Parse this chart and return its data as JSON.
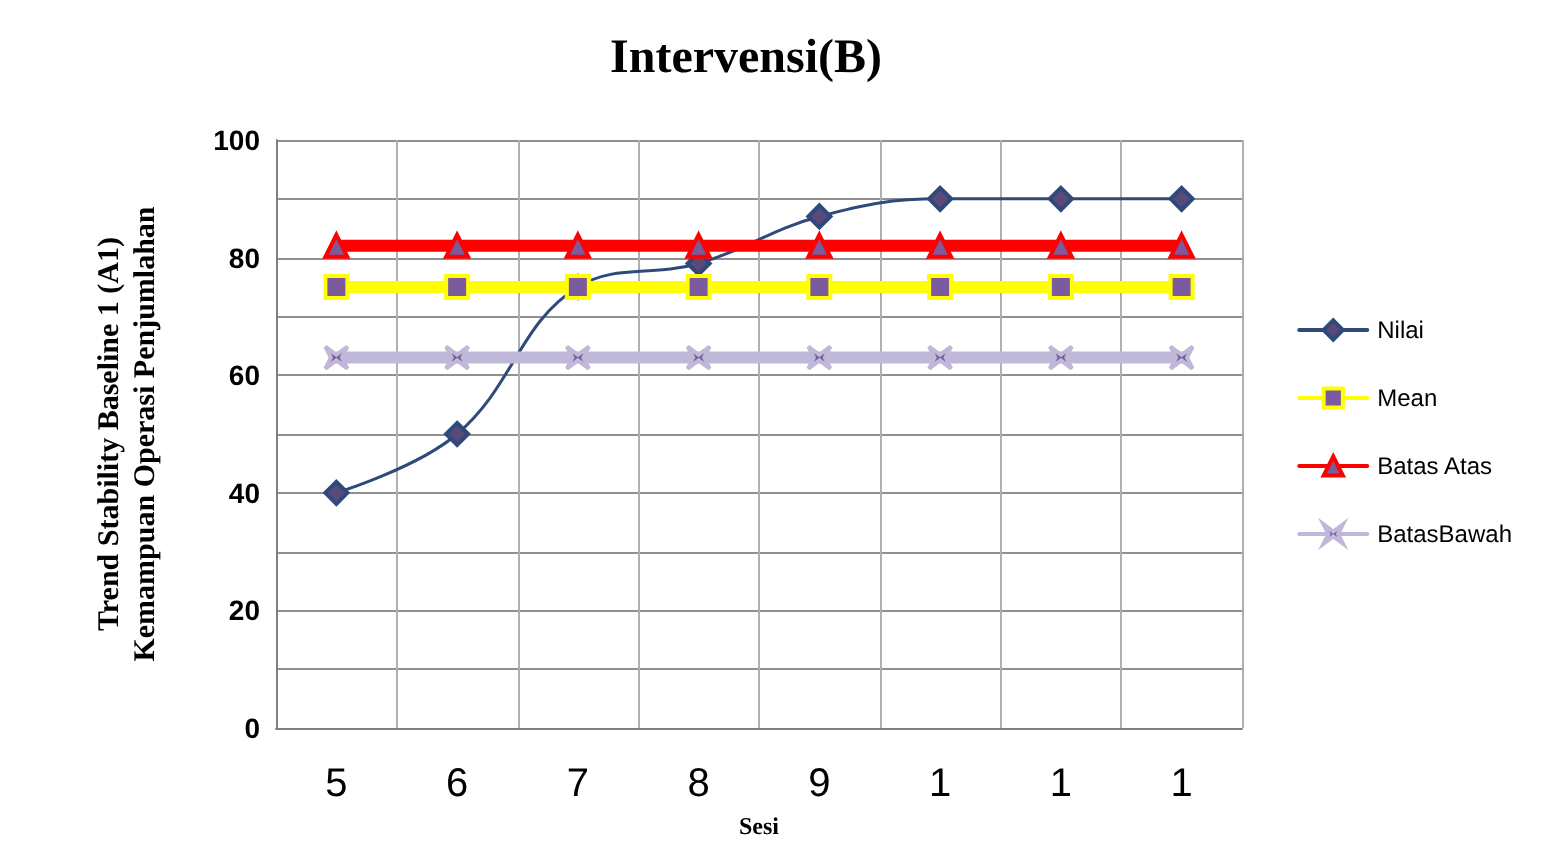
{
  "chart_data": {
    "type": "line",
    "title": "Intervensi(B)",
    "xlabel": "Sesi",
    "ylabel": "Trend Stability Baseline 1 (A1)\nKemampuan Operasi Penjumlahan",
    "categories": [
      "5",
      "6",
      "7",
      "8",
      "9",
      "1",
      "1",
      "1"
    ],
    "series": [
      {
        "name": "Nilai",
        "color": "#2f4a7a",
        "marker": "diamond",
        "values": [
          40,
          50,
          75,
          79,
          87,
          90,
          90,
          90
        ]
      },
      {
        "name": "Mean",
        "color": "#ffff00",
        "marker": "square",
        "values": [
          75,
          75,
          75,
          75,
          75,
          75,
          75,
          75
        ]
      },
      {
        "name": "Batas Atas",
        "color": "#ff0000",
        "marker": "triangle",
        "values": [
          82,
          82,
          82,
          82,
          82,
          82,
          82,
          82
        ]
      },
      {
        "name": "BatasBawah",
        "color": "#bfb8d8",
        "marker": "cross",
        "values": [
          63,
          63,
          63,
          63,
          63,
          63,
          63,
          63
        ]
      }
    ],
    "ylim": [
      0,
      100
    ],
    "yticks": [
      0,
      {
        "value": 10,
        "label": null
      },
      20,
      {
        "value": 30,
        "label": null
      },
      40,
      {
        "value": 50,
        "label": null
      },
      60,
      {
        "value": 70,
        "label": null
      },
      80,
      {
        "value": 90,
        "label": null
      },
      100
    ],
    "grid": true,
    "legend": "right"
  }
}
